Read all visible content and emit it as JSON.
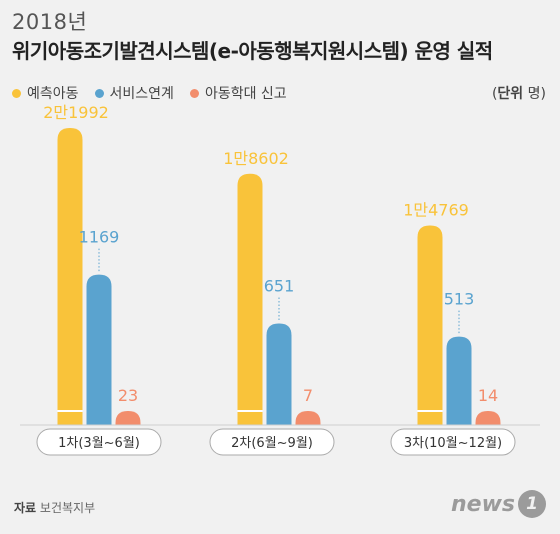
{
  "chart_data": {
    "type": "bar",
    "title": "2018년",
    "subtitle": "위기아동조기발견시스템(e-아동행복지원시스템) 운영 실적",
    "unit_label": "단위",
    "unit_value": "명",
    "categories": [
      "1차(3월~6월)",
      "2차(6월~9월)",
      "3차(10월~12월)"
    ],
    "series": [
      {
        "name": "예측아동",
        "values": [
          21992,
          18602,
          14769
        ],
        "labels": [
          "2만1992",
          "1만8602",
          "1만4769"
        ],
        "color": "#f9c33a"
      },
      {
        "name": "서비스연계",
        "values": [
          1169,
          651,
          513
        ],
        "labels": [
          "1169",
          "651",
          "513"
        ],
        "color": "#5aa3cf"
      },
      {
        "name": "아동학대 신고",
        "values": [
          23,
          7,
          14
        ],
        "labels": [
          "23",
          "7",
          "14"
        ],
        "color": "#f28d6c"
      }
    ]
  },
  "source": {
    "label": "자료",
    "text": "보건복지부"
  },
  "logo": {
    "text": "news",
    "badge": "1"
  }
}
